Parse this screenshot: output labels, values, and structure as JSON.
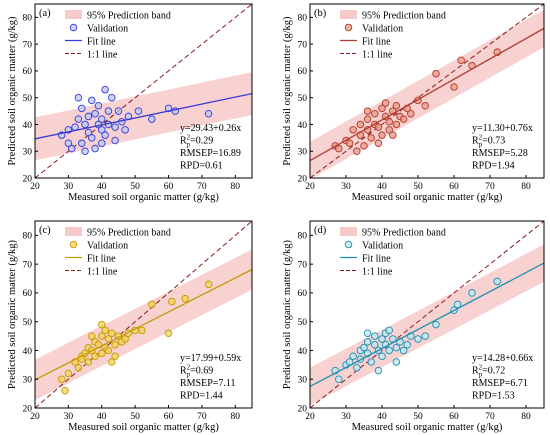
{
  "legend_labels": {
    "band": "95% Prediction band",
    "validation": "Validation",
    "fit": "Fit line",
    "one_to_one": "1:1 line"
  },
  "colors": {
    "band": "#f4b8b8",
    "one_to_one": "#8b1a1a"
  },
  "chart_data": [
    {
      "type": "scatter",
      "panel_label": "(a)",
      "xlabel": "Measured soil organic matter (g/kg)",
      "ylabel": "Predicted soil organic matter (g/kg)",
      "xlim": [
        20,
        85
      ],
      "ylim": [
        20,
        85
      ],
      "xticks": [
        20,
        30,
        40,
        50,
        60,
        70,
        80
      ],
      "yticks": [
        20,
        30,
        40,
        50,
        60,
        70,
        80
      ],
      "point_color": "#3a3ad6",
      "point_fill": "#b9c8f2",
      "fit": {
        "intercept": 29.43,
        "slope": 0.26
      },
      "band_halfwidth": 8,
      "stats": [
        "y=29.43+0.26x",
        "Rp2=0.29",
        "RMSEP=16.89",
        "RPD=0.61"
      ],
      "points": [
        [
          28,
          36
        ],
        [
          30,
          38
        ],
        [
          31,
          31
        ],
        [
          32,
          39
        ],
        [
          33,
          42
        ],
        [
          34,
          33
        ],
        [
          34,
          46
        ],
        [
          35,
          30
        ],
        [
          35,
          40
        ],
        [
          36,
          43
        ],
        [
          36,
          37
        ],
        [
          37,
          49
        ],
        [
          37,
          35
        ],
        [
          38,
          44
        ],
        [
          38,
          31
        ],
        [
          39,
          40
        ],
        [
          39,
          47
        ],
        [
          40,
          38
        ],
        [
          40,
          42
        ],
        [
          41,
          36
        ],
        [
          41,
          53
        ],
        [
          42,
          45
        ],
        [
          42,
          40
        ],
        [
          43,
          50
        ],
        [
          44,
          39
        ],
        [
          44,
          34
        ],
        [
          45,
          45
        ],
        [
          46,
          41
        ],
        [
          47,
          38
        ],
        [
          48,
          43
        ],
        [
          51,
          45
        ],
        [
          55,
          42
        ],
        [
          60,
          46
        ],
        [
          62,
          45
        ],
        [
          72,
          44
        ],
        [
          30,
          33
        ],
        [
          33,
          50
        ],
        [
          40,
          33
        ]
      ]
    },
    {
      "type": "scatter",
      "panel_label": "(b)",
      "xlabel": "Measured soil organic matter (g/kg)",
      "ylabel": "Predicted soil organic matter (g/kg)",
      "xlim": [
        20,
        85
      ],
      "ylim": [
        20,
        85
      ],
      "xticks": [
        20,
        30,
        40,
        50,
        60,
        70,
        80
      ],
      "yticks": [
        20,
        30,
        40,
        50,
        60,
        70,
        80
      ],
      "point_color": "#b03a2e",
      "point_fill": "#e89a86",
      "fit": {
        "intercept": 11.3,
        "slope": 0.76
      },
      "band_halfwidth": 7,
      "stats": [
        "y=11.30+0.76x",
        "Rp2=0.73",
        "RMSEP=5.28",
        "RPD=1.94"
      ],
      "points": [
        [
          27,
          32
        ],
        [
          28,
          31
        ],
        [
          30,
          34
        ],
        [
          31,
          33
        ],
        [
          32,
          38
        ],
        [
          33,
          30
        ],
        [
          34,
          40
        ],
        [
          34,
          36
        ],
        [
          35,
          32
        ],
        [
          36,
          42
        ],
        [
          36,
          38
        ],
        [
          37,
          35
        ],
        [
          38,
          44
        ],
        [
          38,
          40
        ],
        [
          39,
          39
        ],
        [
          40,
          46
        ],
        [
          40,
          36
        ],
        [
          41,
          43
        ],
        [
          41,
          48
        ],
        [
          42,
          41
        ],
        [
          42,
          38
        ],
        [
          43,
          45
        ],
        [
          44,
          47
        ],
        [
          44,
          40
        ],
        [
          45,
          43
        ],
        [
          46,
          42
        ],
        [
          47,
          46
        ],
        [
          48,
          44
        ],
        [
          50,
          49
        ],
        [
          52,
          47
        ],
        [
          55,
          59
        ],
        [
          60,
          54
        ],
        [
          62,
          64
        ],
        [
          65,
          62
        ],
        [
          72,
          67
        ],
        [
          36,
          45
        ],
        [
          39,
          33
        ],
        [
          43,
          36
        ]
      ]
    },
    {
      "type": "scatter",
      "panel_label": "(c)",
      "xlabel": "Measured soil organic matter (g/kg)",
      "ylabel": "Predicted soil organic matter (g/kg)",
      "xlim": [
        20,
        85
      ],
      "ylim": [
        20,
        85
      ],
      "xticks": [
        20,
        30,
        40,
        50,
        60,
        70,
        80
      ],
      "yticks": [
        20,
        30,
        40,
        50,
        60,
        70,
        80
      ],
      "point_color": "#c69a00",
      "point_fill": "#f2d25a",
      "fit": {
        "intercept": 17.99,
        "slope": 0.59
      },
      "band_halfwidth": 7,
      "stats": [
        "y=17.99+0.59x",
        "Rp2=0.69",
        "RMSEP=7.11",
        "RPD=1.44"
      ],
      "points": [
        [
          28,
          30
        ],
        [
          29,
          26
        ],
        [
          30,
          32
        ],
        [
          32,
          36
        ],
        [
          33,
          34
        ],
        [
          34,
          38
        ],
        [
          34,
          37
        ],
        [
          35,
          39
        ],
        [
          36,
          41
        ],
        [
          36,
          36
        ],
        [
          37,
          40
        ],
        [
          38,
          43
        ],
        [
          38,
          38
        ],
        [
          39,
          42
        ],
        [
          40,
          45
        ],
        [
          40,
          39
        ],
        [
          41,
          47
        ],
        [
          41,
          41
        ],
        [
          42,
          44
        ],
        [
          42,
          40
        ],
        [
          43,
          46
        ],
        [
          44,
          42
        ],
        [
          44,
          38
        ],
        [
          45,
          45
        ],
        [
          46,
          43
        ],
        [
          47,
          44
        ],
        [
          48,
          46
        ],
        [
          50,
          47
        ],
        [
          52,
          47
        ],
        [
          55,
          56
        ],
        [
          60,
          46
        ],
        [
          61,
          57
        ],
        [
          65,
          58
        ],
        [
          72,
          63
        ],
        [
          37,
          45
        ],
        [
          40,
          49
        ],
        [
          43,
          36
        ]
      ]
    },
    {
      "type": "scatter",
      "panel_label": "(d)",
      "xlabel": "Measured soil organic matter (g/kg)",
      "ylabel": "Predicted soil organic matter (g/kg)",
      "xlim": [
        20,
        85
      ],
      "ylim": [
        20,
        85
      ],
      "xticks": [
        20,
        30,
        40,
        50,
        60,
        70,
        80
      ],
      "yticks": [
        20,
        30,
        40,
        50,
        60,
        70,
        80
      ],
      "point_color": "#1f8fb0",
      "point_fill": "#bfe8f2",
      "fit": {
        "intercept": 14.28,
        "slope": 0.66
      },
      "band_halfwidth": 6.5,
      "stats": [
        "y=14.28+0.66x",
        "Rp2=0.72",
        "RMSEP=6.71",
        "RPD=1.53"
      ],
      "points": [
        [
          27,
          33
        ],
        [
          28,
          30
        ],
        [
          30,
          35
        ],
        [
          31,
          36
        ],
        [
          32,
          38
        ],
        [
          33,
          34
        ],
        [
          34,
          40
        ],
        [
          34,
          37
        ],
        [
          35,
          41
        ],
        [
          36,
          39
        ],
        [
          36,
          43
        ],
        [
          37,
          36
        ],
        [
          38,
          42
        ],
        [
          38,
          45
        ],
        [
          39,
          40
        ],
        [
          40,
          44
        ],
        [
          40,
          38
        ],
        [
          41,
          46
        ],
        [
          41,
          42
        ],
        [
          42,
          40
        ],
        [
          43,
          44
        ],
        [
          44,
          41
        ],
        [
          44,
          36
        ],
        [
          45,
          43
        ],
        [
          46,
          40
        ],
        [
          47,
          42
        ],
        [
          48,
          45
        ],
        [
          50,
          44
        ],
        [
          52,
          45
        ],
        [
          55,
          49
        ],
        [
          60,
          54
        ],
        [
          61,
          56
        ],
        [
          65,
          60
        ],
        [
          72,
          64
        ],
        [
          36,
          46
        ],
        [
          39,
          33
        ],
        [
          42,
          47
        ]
      ]
    }
  ]
}
